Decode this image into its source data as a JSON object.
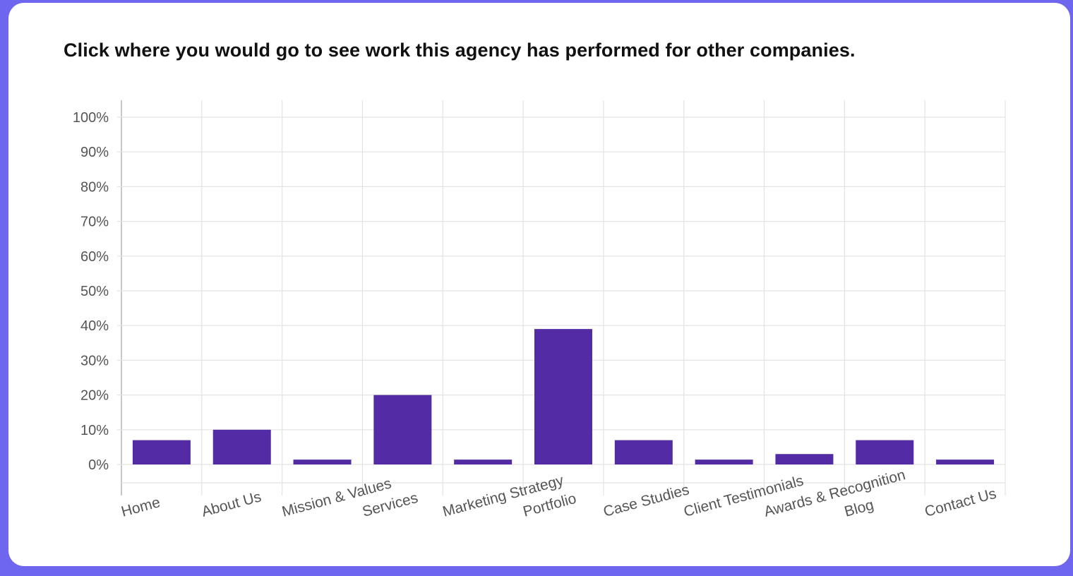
{
  "question": {
    "text": "Click where you would go to see work this agency has performed for other companies."
  },
  "colors": {
    "bar": "#532ba4",
    "grid": "#e3e3e3",
    "axis": "#c8c8c8",
    "frame": "#6f66f0"
  },
  "chart_data": {
    "type": "bar",
    "title": "",
    "xlabel": "",
    "ylabel": "",
    "ylim": [
      0,
      100
    ],
    "y_ticks": [
      "0%",
      "10%",
      "20%",
      "30%",
      "40%",
      "50%",
      "60%",
      "70%",
      "80%",
      "90%",
      "100%"
    ],
    "categories": [
      "Home",
      "About Us",
      "Mission & Values",
      "Services",
      "Marketing Strategy",
      "Portfolio",
      "Case Studies",
      "Client Testimonials",
      "Awards & Recognition",
      "Blog",
      "Contact Us"
    ],
    "values": [
      7,
      10,
      1.4,
      20,
      1.4,
      39,
      7,
      1.4,
      3,
      7,
      1.4
    ],
    "grid": true,
    "legend": "none"
  }
}
